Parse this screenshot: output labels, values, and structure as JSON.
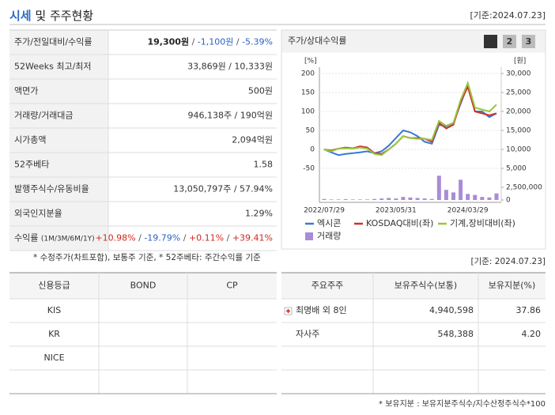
{
  "header": {
    "title_highlight": "시세",
    "title_rest": "및 주주현황",
    "date": "[기준:2024.07.23]"
  },
  "price_table": {
    "separator": " / ",
    "rows": [
      {
        "label": "주가/전일대비/수익률",
        "values": [
          "19,300원",
          "-1,100원",
          "-5.39%"
        ],
        "colors": [
          "#222222",
          "#2a62c9",
          "#2a62c9"
        ]
      },
      {
        "label": "52Weeks 최고/최저",
        "values": [
          "33,869원 / 10,333원"
        ]
      },
      {
        "label": "액면가",
        "values": [
          "500원"
        ]
      },
      {
        "label": "거래량/거래대금",
        "values": [
          "946,138주 / 190억원"
        ]
      },
      {
        "label": "시가총액",
        "values": [
          "2,094억원"
        ]
      },
      {
        "label": "52주베타",
        "values": [
          "1.58"
        ]
      },
      {
        "label": "발행주식수/유동비율",
        "values": [
          "13,050,797주 / 57.94%"
        ]
      },
      {
        "label": "외국인지분율",
        "values": [
          "1.29%"
        ]
      },
      {
        "label": "수익률",
        "sublabel": "(1M/3M/6M/1Y)",
        "values": [
          "+10.98%",
          "-19.79%",
          "+0.11%",
          "+39.41%"
        ],
        "colors": [
          "#d0281c",
          "#2a62c9",
          "#d0281c",
          "#d0281c"
        ]
      }
    ]
  },
  "price_note": "* 수정주가(차트포함), 보통주 기준, * 52주베타: 주간수익률 기준",
  "chart_data": {
    "type": "line",
    "title": "주가/상대수익률",
    "tabs": [
      "1",
      "2",
      "3"
    ],
    "categories": [
      "2022/07/29",
      null,
      null,
      null,
      null,
      null,
      null,
      null,
      null,
      null,
      "2023/05/31",
      null,
      null,
      null,
      null,
      null,
      null,
      null,
      null,
      null,
      "2024/03/29",
      null,
      null,
      null,
      null
    ],
    "y_unit": "[%]",
    "y2_unit": "[원]",
    "ylim": [
      -50,
      200
    ],
    "yticks": [
      -50,
      0,
      50,
      100,
      150,
      200
    ],
    "y2lim": [
      5000,
      30000
    ],
    "y2ticks": [
      {
        "value": 5000,
        "label": "5,000"
      },
      {
        "value": 10000,
        "label": "10,000"
      },
      {
        "value": 15000,
        "label": "15,000"
      },
      {
        "value": 20000,
        "label": "20,000"
      },
      {
        "value": 25000,
        "label": "25,000"
      },
      {
        "value": 30000,
        "label": "30,000"
      }
    ],
    "y3lim": [
      0,
      2500000
    ],
    "y3ticks": [
      0,
      {
        "value": 2500000,
        "label": "2,500,000"
      }
    ],
    "grid": true,
    "series": [
      {
        "name": "엑시콘",
        "color": "#3a78d8",
        "values": [
          0,
          -8,
          -15,
          -12,
          -10,
          -8,
          -5,
          -10,
          -5,
          10,
          30,
          50,
          45,
          35,
          20,
          15,
          65,
          60,
          70,
          120,
          170,
          100,
          100,
          85,
          95
        ]
      },
      {
        "name": "KOSDAQ대비(좌)",
        "color": "#c8352b",
        "values": [
          0,
          -3,
          2,
          5,
          3,
          8,
          5,
          -10,
          -12,
          0,
          15,
          35,
          30,
          30,
          28,
          20,
          70,
          55,
          65,
          125,
          165,
          100,
          95,
          90,
          95
        ]
      },
      {
        "name": "기계,장비대비(좌)",
        "color": "#9bc53d",
        "values": [
          0,
          -5,
          2,
          3,
          2,
          5,
          2,
          -12,
          -15,
          0,
          15,
          35,
          30,
          28,
          28,
          25,
          75,
          62,
          70,
          130,
          175,
          110,
          105,
          100,
          118
        ]
      },
      {
        "name": "거래량",
        "color": "#a98cd6",
        "type": "bar",
        "axis": "y3",
        "values": [
          200000,
          100000,
          100000,
          150000,
          100000,
          100000,
          100000,
          200000,
          300000,
          400000,
          300000,
          600000,
          500000,
          400000,
          300000,
          200000,
          4800000,
          2000000,
          1500000,
          4000000,
          1200000,
          1000000,
          600000,
          500000,
          1300000
        ]
      }
    ]
  },
  "bottom_date": "[기준: 2024.07.23]",
  "credit_table": {
    "headers": [
      "신용등급",
      "BOND",
      "CP"
    ],
    "rows": [
      [
        "KIS"
      ],
      [
        "KR"
      ],
      [
        "NICE"
      ]
    ]
  },
  "holder_table": {
    "headers": [
      "주요주주",
      "보유주식수(보통)",
      "보유지분(%)"
    ],
    "rows": [
      [
        "최명배 외 8인",
        "4,940,598",
        "37.86"
      ],
      [
        "자사주",
        "548,388",
        "4.20"
      ]
    ]
  },
  "holder_note": "* 보유지분 : 보유지분주식수/지수산정주식수*100"
}
